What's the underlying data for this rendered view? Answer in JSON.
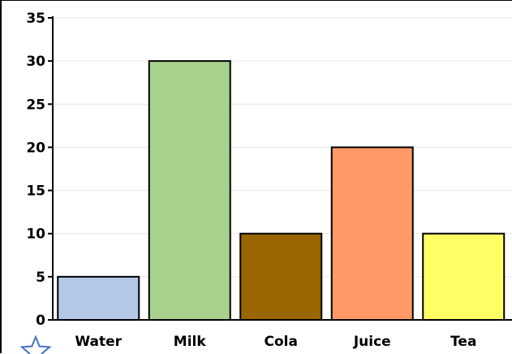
{
  "chart_data": {
    "type": "bar",
    "categories": [
      "Water",
      "Milk",
      "Cola",
      "Juice",
      "Tea"
    ],
    "values": [
      5,
      30,
      10,
      20,
      10
    ],
    "colors": [
      "#b4c7e7",
      "#a9d18e",
      "#996600",
      "#ff9966",
      "#ffff66"
    ],
    "bar_outline": "#000000",
    "gridline_color": "#e6e6e6",
    "ylim": [
      0,
      35
    ],
    "yticks": [
      0,
      5,
      10,
      15,
      20,
      25,
      30,
      35
    ],
    "grid": true,
    "title": "",
    "xlabel": "",
    "ylabel": ""
  },
  "icons": {
    "corner": "star-icon",
    "corner_color": "#4472c4"
  }
}
